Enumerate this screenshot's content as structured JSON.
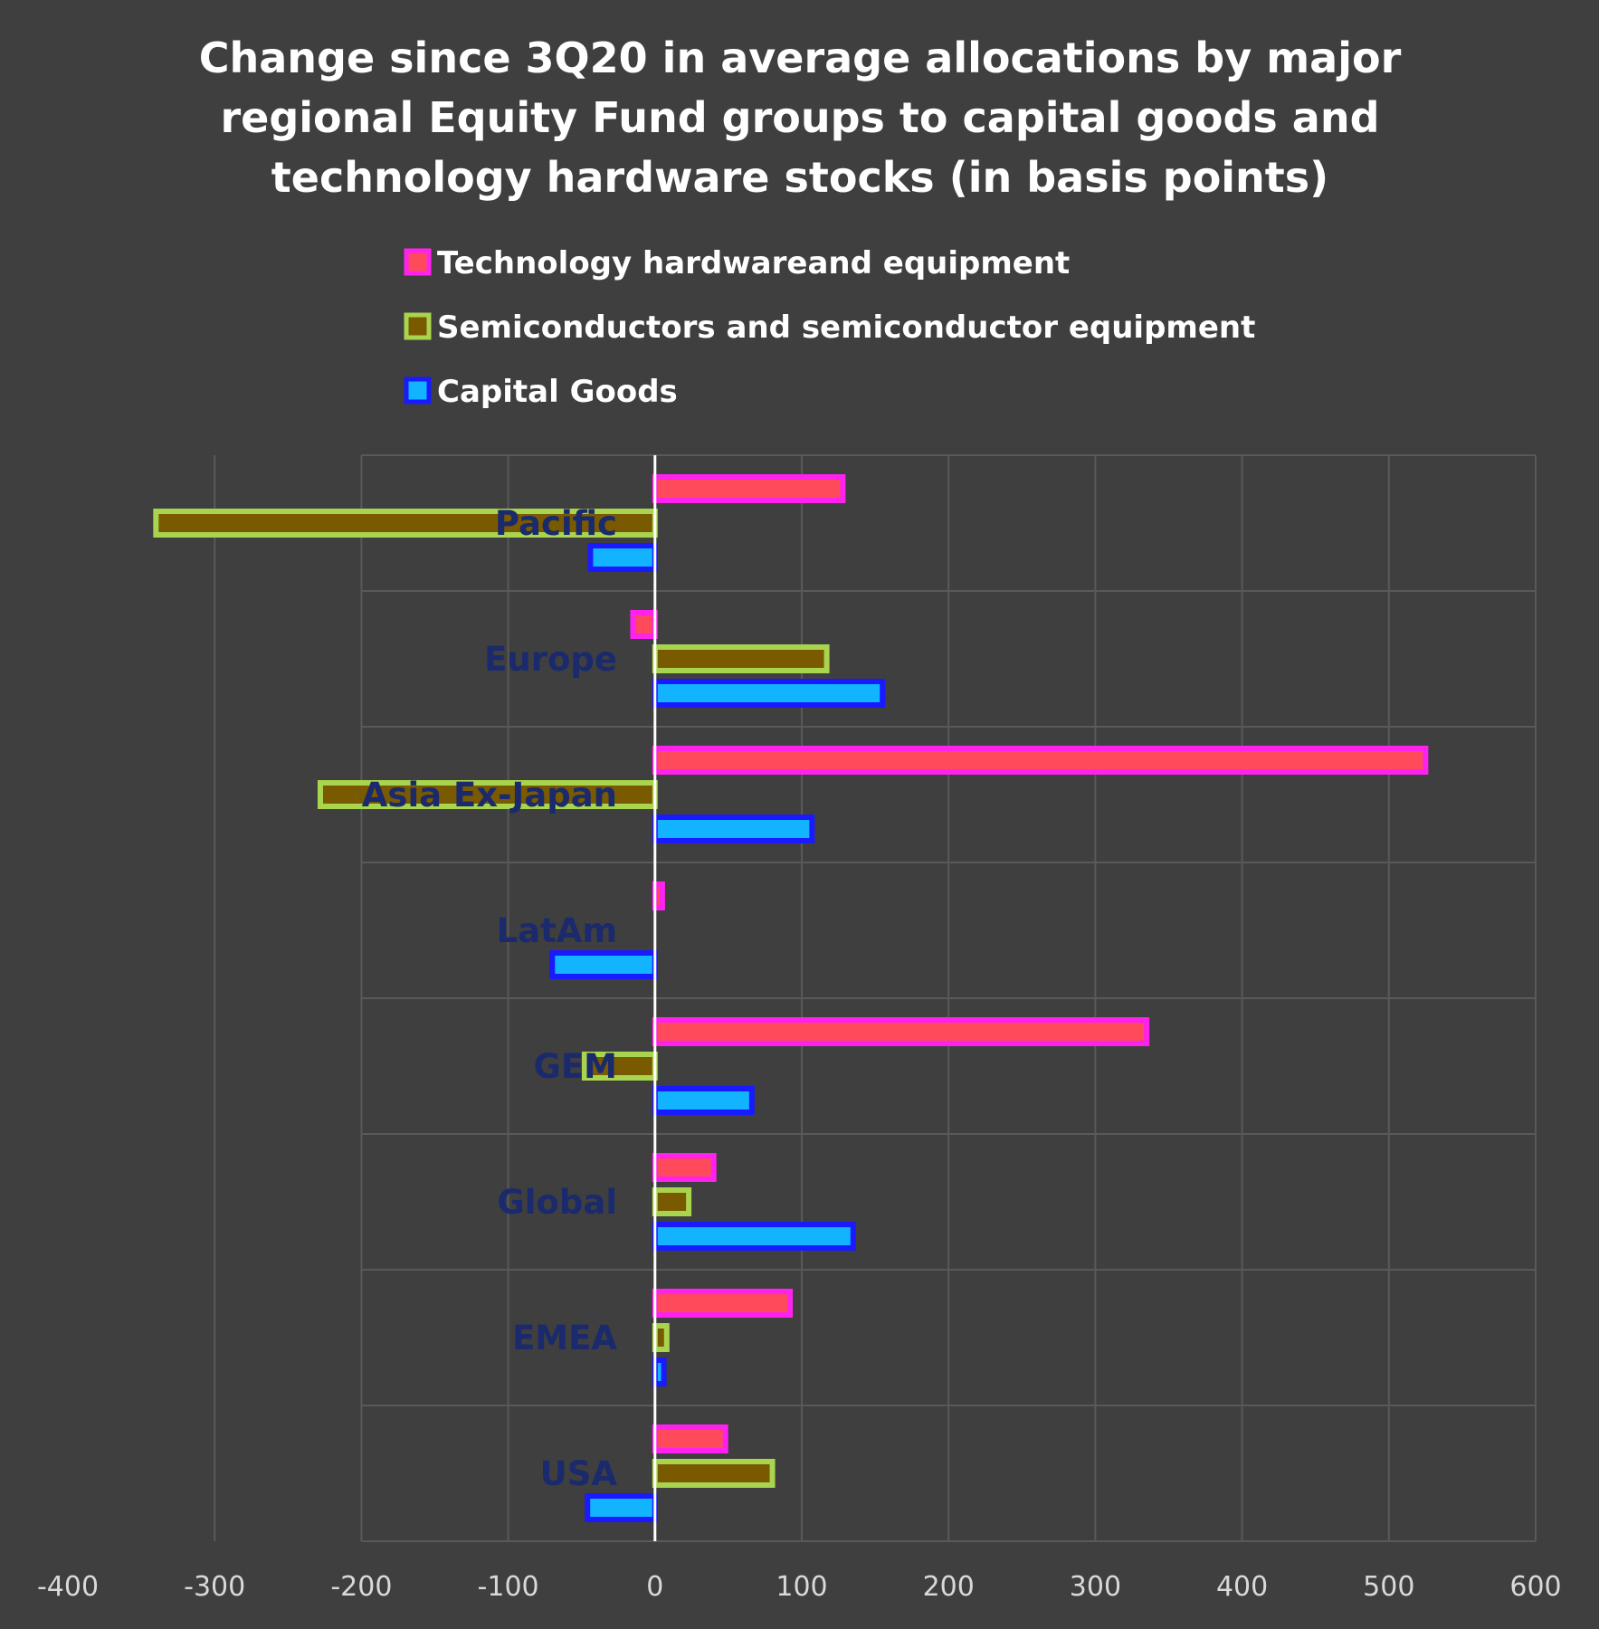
{
  "chart_data": {
    "type": "bar",
    "orientation": "horizontal",
    "title_lines": [
      "Change since 3Q20 in average allocations by major",
      "regional Equity Fund groups to capital goods and",
      "technology hardware stocks (in basis points)"
    ],
    "categories": [
      "Pacific",
      "Europe",
      "Asia Ex-Japan",
      "LatAm",
      "GEM",
      "Global",
      "EMEA",
      "USA"
    ],
    "series": [
      {
        "name": "Technology hardwareand equipment",
        "fill": "#ff4a5c",
        "stroke": "#ff22ee",
        "values": [
          128,
          -15,
          525,
          5,
          335,
          40,
          92,
          48
        ]
      },
      {
        "name": "Semiconductors and semiconductor equipment",
        "fill": "#7a5a00",
        "stroke": "#a9d44e",
        "values": [
          -340,
          117,
          -228,
          0,
          -48,
          23,
          8,
          80
        ]
      },
      {
        "name": "Capital Goods",
        "fill": "#12b4ff",
        "stroke": "#1a1aff",
        "values": [
          -44,
          155,
          107,
          -70,
          66,
          135,
          6,
          -46
        ]
      }
    ],
    "xlim": [
      -400,
      600
    ],
    "xticks": [
      "-400",
      "-300",
      "-200",
      "-100",
      "0",
      "100",
      "200",
      "300",
      "400",
      "500",
      "600"
    ],
    "grid": true,
    "legend_position": "top"
  }
}
